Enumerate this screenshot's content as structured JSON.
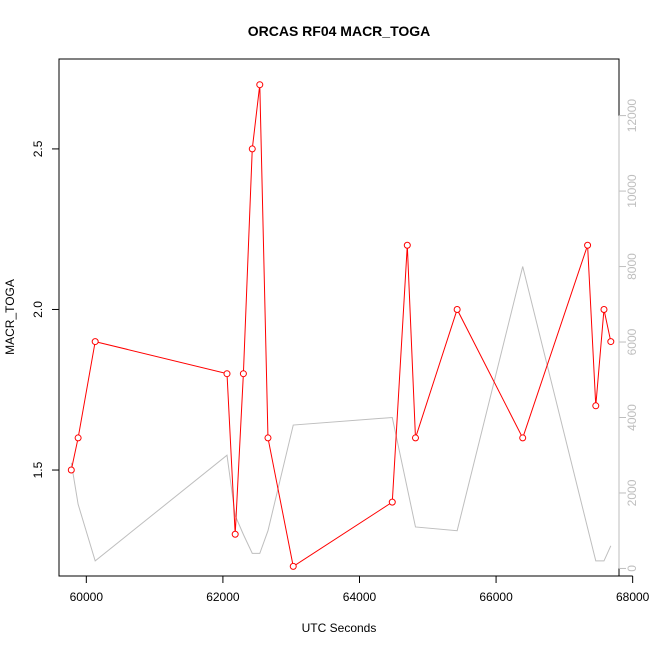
{
  "chart_data": {
    "type": "line",
    "title": "ORCAS RF04 MACR_TOGA",
    "xlabel": "UTC Seconds",
    "ylabel": "MACR_TOGA",
    "xlim": [
      59600,
      67800
    ],
    "ylim": [
      1.17,
      2.78
    ],
    "y2lim": [
      -200,
      13500
    ],
    "x_ticks": [
      60000,
      62000,
      64000,
      66000,
      68000
    ],
    "y_ticks": [
      1.5,
      2.0,
      2.5
    ],
    "y2_ticks": [
      0,
      2000,
      4000,
      6000,
      8000,
      10000,
      12000
    ],
    "colors": {
      "primary": "#ff0000",
      "secondary": "#bebebe"
    },
    "series": [
      {
        "axis": "left",
        "style": "line+points",
        "x": [
          59780,
          59880,
          60130,
          62060,
          62180,
          62300,
          62430,
          62540,
          62660,
          63030,
          64480,
          64700,
          64820,
          65430,
          66390,
          67340,
          67460,
          67580,
          67680
        ],
        "y": [
          1.5,
          1.6,
          1.9,
          1.8,
          1.3,
          1.8,
          2.5,
          2.7,
          1.6,
          1.2,
          1.4,
          2.2,
          1.6,
          2.0,
          1.6,
          2.2,
          1.7,
          2.0,
          1.9
        ]
      },
      {
        "axis": "right",
        "style": "line",
        "x": [
          59780,
          59880,
          60130,
          62060,
          62180,
          62300,
          62430,
          62540,
          62660,
          63030,
          64480,
          64820,
          65430,
          66390,
          67460,
          67580,
          67680
        ],
        "y": [
          2800,
          1700,
          200,
          3000,
          1400,
          900,
          400,
          400,
          1000,
          3800,
          4000,
          1100,
          1000,
          8000,
          200,
          200,
          600
        ]
      }
    ]
  }
}
